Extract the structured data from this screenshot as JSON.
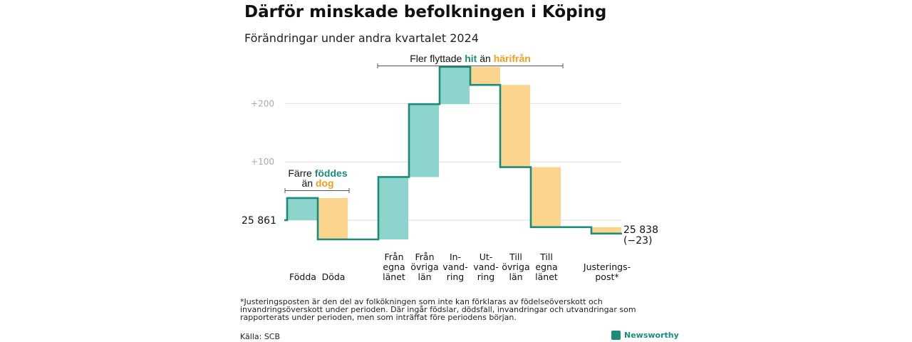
{
  "title": "Därför minskade befolkningen i Köping",
  "subtitle": "Förändringar under andra kvartalet 2024",
  "chart_data": {
    "type": "waterfall",
    "start_value": 25861,
    "start_label": "25  861",
    "end_value": 25838,
    "end_label_line1": "25 838",
    "end_label_line2": "(−23)",
    "y_ticks": [
      {
        "value": 100,
        "label": "+100"
      },
      {
        "value": 200,
        "label": "+200"
      }
    ],
    "grid": true,
    "steps": [
      {
        "name": "Födda",
        "label_lines": [
          "Födda"
        ],
        "delta": 38
      },
      {
        "name": "Döda",
        "label_lines": [
          "Döda"
        ],
        "delta": -71
      },
      {
        "name": "Från egna länet",
        "label_lines": [
          "Från",
          "egna",
          "länet"
        ],
        "delta": 107
      },
      {
        "name": "Från övriga län",
        "label_lines": [
          "Från",
          "övriga",
          "län"
        ],
        "delta": 125
      },
      {
        "name": "Invandring",
        "label_lines": [
          "In-",
          "vand-",
          "ring"
        ],
        "delta": 64
      },
      {
        "name": "Utvandring",
        "label_lines": [
          "Ut-",
          "vand-",
          "ring"
        ],
        "delta": -31
      },
      {
        "name": "Till övriga län",
        "label_lines": [
          "Till",
          "övriga",
          "län"
        ],
        "delta": -141
      },
      {
        "name": "Till egna länet",
        "label_lines": [
          "Till",
          "egna",
          "länet"
        ],
        "delta": -103
      },
      {
        "name": "Justeringspost*",
        "label_lines": [
          "Justerings-",
          "post*"
        ],
        "delta": -11
      }
    ],
    "colors": {
      "increase_fill": "#8dd5cc",
      "decrease_fill": "#fbd58e",
      "line": "#1b8c7c",
      "grid": "#dddddd"
    },
    "annotations": [
      {
        "lines": [
          [
            "Färre ",
            "normal"
          ],
          [
            "föddes",
            "green"
          ],
          [
            "än ",
            "normal"
          ],
          [
            "dog",
            "orange"
          ]
        ]
      },
      {
        "line": [
          [
            "Fler flyttade ",
            "normal"
          ],
          [
            "hit",
            "green"
          ],
          [
            "  än ",
            "normal"
          ],
          [
            "härifrån",
            "orange"
          ]
        ]
      }
    ],
    "text_colors": {
      "green": "#1b8c7c",
      "orange": "#f0a020"
    }
  },
  "footnote": "*Justeringsposten är den del av folkökningen som inte kan förklaras av födelseöverskott och invandringsöverskott under perioden. Där ingår födslar, dödsfall, invandringar och utvandringar som rapporterats under perioden, men som inträffat före periodens början.",
  "source": "Källa: SCB",
  "brand": "Newsworthy"
}
